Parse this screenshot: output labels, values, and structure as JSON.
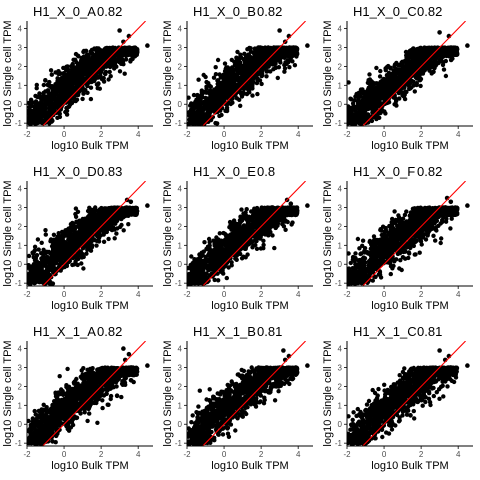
{
  "figure": {
    "background": "#ffffff",
    "point_color": "#000000",
    "line_color": "#ff0000",
    "axis_color": "#000000",
    "tick_label_color": "#4d4d4d"
  },
  "chart_data": [
    {
      "type": "scatter",
      "title": "H1_X_0_A",
      "correlation": "0.82",
      "xlabel": "log10 Bulk TPM",
      "ylabel": "log10 Single cell TPM",
      "xlim": [
        -2,
        4.8
      ],
      "ylim": [
        -1.15,
        4.4
      ],
      "x_ticks": [
        "-2",
        "0",
        "2",
        "4"
      ],
      "y_ticks": [
        "-1",
        "0",
        "1",
        "2",
        "3",
        "4"
      ],
      "reference_line": {
        "slope": 1,
        "intercept": 0
      },
      "outliers": [
        {
          "x": 3.0,
          "y": 3.9
        },
        {
          "x": 3.5,
          "y": 3.6
        },
        {
          "x": 4.5,
          "y": 3.1
        },
        {
          "x": 3.2,
          "y": 3.3
        }
      ]
    },
    {
      "type": "scatter",
      "title": "H1_X_0_B",
      "correlation": "0.82",
      "xlabel": "log10 Bulk TPM",
      "ylabel": "log10 Single cell TPM",
      "xlim": [
        -2,
        4.8
      ],
      "ylim": [
        -1.15,
        4.4
      ],
      "x_ticks": [
        "-2",
        "0",
        "2",
        "4"
      ],
      "y_ticks": [
        "-1",
        "0",
        "1",
        "2",
        "3",
        "4"
      ],
      "reference_line": {
        "slope": 1,
        "intercept": 0
      },
      "outliers": [
        {
          "x": 3.0,
          "y": 3.9
        },
        {
          "x": 3.5,
          "y": 3.6
        },
        {
          "x": 4.5,
          "y": 3.1
        },
        {
          "x": 3.3,
          "y": 3.3
        }
      ]
    },
    {
      "type": "scatter",
      "title": "H1_X_0_C",
      "correlation": "0.82",
      "xlabel": "log10 Bulk TPM",
      "ylabel": "log10 Single cell TPM",
      "xlim": [
        -2,
        4.8
      ],
      "ylim": [
        -1.15,
        4.4
      ],
      "x_ticks": [
        "-2",
        "0",
        "2",
        "4"
      ],
      "y_ticks": [
        "-1",
        "0",
        "1",
        "2",
        "3",
        "4"
      ],
      "reference_line": {
        "slope": 1,
        "intercept": 0
      },
      "outliers": [
        {
          "x": 3.0,
          "y": 3.8
        },
        {
          "x": 3.5,
          "y": 3.6
        },
        {
          "x": 4.5,
          "y": 3.1
        }
      ]
    },
    {
      "type": "scatter",
      "title": "H1_X_0_D",
      "correlation": "0.83",
      "xlabel": "log10 Bulk TPM",
      "ylabel": "log10 Single cell TPM",
      "xlim": [
        -2,
        4.8
      ],
      "ylim": [
        -1.15,
        4.4
      ],
      "x_ticks": [
        "-2",
        "0",
        "2",
        "4"
      ],
      "y_ticks": [
        "-1",
        "0",
        "1",
        "2",
        "3",
        "4"
      ],
      "reference_line": {
        "slope": 1,
        "intercept": 0
      },
      "outliers": [
        {
          "x": 3.4,
          "y": 3.4
        },
        {
          "x": 4.5,
          "y": 3.1
        },
        {
          "x": 3.6,
          "y": 3.3
        }
      ]
    },
    {
      "type": "scatter",
      "title": "H1_X_0_E",
      "correlation": "0.8",
      "xlabel": "log10 Bulk TPM",
      "ylabel": "log10 Single cell TPM",
      "xlim": [
        -2,
        4.8
      ],
      "ylim": [
        -1.15,
        4.4
      ],
      "x_ticks": [
        "-2",
        "0",
        "2",
        "4"
      ],
      "y_ticks": [
        "-1",
        "0",
        "1",
        "2",
        "3",
        "4"
      ],
      "reference_line": {
        "slope": 1,
        "intercept": 0
      },
      "outliers": [
        {
          "x": 3.4,
          "y": 3.4
        },
        {
          "x": 4.5,
          "y": 3.1
        },
        {
          "x": 3.6,
          "y": 3.2
        }
      ]
    },
    {
      "type": "scatter",
      "title": "H1_X_0_F",
      "correlation": "0.82",
      "xlabel": "log10 Bulk TPM",
      "ylabel": "log10 Single cell TPM",
      "xlim": [
        -2,
        4.8
      ],
      "ylim": [
        -1.15,
        4.4
      ],
      "x_ticks": [
        "-2",
        "0",
        "2",
        "4"
      ],
      "y_ticks": [
        "-1",
        "0",
        "1",
        "2",
        "3",
        "4"
      ],
      "reference_line": {
        "slope": 1,
        "intercept": 0
      },
      "outliers": [
        {
          "x": 3.4,
          "y": 3.5
        },
        {
          "x": 4.5,
          "y": 3.1
        },
        {
          "x": 3.6,
          "y": 3.3
        }
      ]
    },
    {
      "type": "scatter",
      "title": "H1_X_1_A",
      "correlation": "0.82",
      "xlabel": "log10 Bulk TPM",
      "ylabel": "log10 Single cell TPM",
      "xlim": [
        -2,
        4.8
      ],
      "ylim": [
        -1.15,
        4.4
      ],
      "x_ticks": [
        "-2",
        "0",
        "2",
        "4"
      ],
      "y_ticks": [
        "-1",
        "0",
        "1",
        "2",
        "3",
        "4"
      ],
      "reference_line": {
        "slope": 1,
        "intercept": 0
      },
      "outliers": [
        {
          "x": 3.2,
          "y": 4.0
        },
        {
          "x": 3.5,
          "y": 3.7
        },
        {
          "x": 4.5,
          "y": 3.1
        },
        {
          "x": 3.3,
          "y": 3.4
        }
      ]
    },
    {
      "type": "scatter",
      "title": "H1_X_1_B",
      "correlation": "0.81",
      "xlabel": "log10 Bulk TPM",
      "ylabel": "log10 Single cell TPM",
      "xlim": [
        -2,
        4.8
      ],
      "ylim": [
        -1.15,
        4.4
      ],
      "x_ticks": [
        "-2",
        "0",
        "2",
        "4"
      ],
      "y_ticks": [
        "-1",
        "0",
        "1",
        "2",
        "3",
        "4"
      ],
      "reference_line": {
        "slope": 1,
        "intercept": 0
      },
      "outliers": [
        {
          "x": 3.2,
          "y": 3.9
        },
        {
          "x": 3.5,
          "y": 3.6
        },
        {
          "x": 4.5,
          "y": 3.1
        },
        {
          "x": 3.3,
          "y": 3.4
        }
      ]
    },
    {
      "type": "scatter",
      "title": "H1_X_1_C",
      "correlation": "0.81",
      "xlabel": "log10 Bulk TPM",
      "ylabel": "log10 Single cell TPM",
      "xlim": [
        -2,
        4.8
      ],
      "ylim": [
        -1.15,
        4.4
      ],
      "x_ticks": [
        "-2",
        "0",
        "2",
        "4"
      ],
      "y_ticks": [
        "-1",
        "0",
        "1",
        "2",
        "3",
        "4"
      ],
      "reference_line": {
        "slope": 1,
        "intercept": 0
      },
      "outliers": [
        {
          "x": 3.0,
          "y": 3.9
        },
        {
          "x": 3.5,
          "y": 3.6
        },
        {
          "x": 4.5,
          "y": 3.1
        },
        {
          "x": 3.3,
          "y": 3.4
        }
      ]
    }
  ]
}
